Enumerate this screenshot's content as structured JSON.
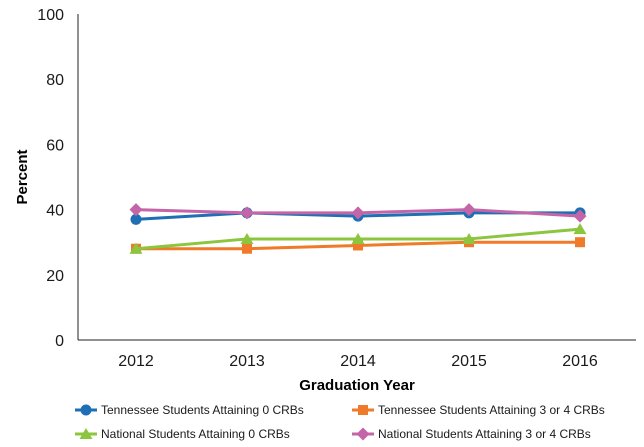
{
  "chart_data": {
    "type": "line",
    "title": "",
    "xlabel": "Graduation Year",
    "ylabel": "Percent",
    "categories": [
      "2012",
      "2013",
      "2014",
      "2015",
      "2016"
    ],
    "ylim": [
      0,
      100
    ],
    "yticks": [
      0,
      20,
      40,
      60,
      80,
      100
    ],
    "grid": false,
    "legend_position": "bottom",
    "series": [
      {
        "name": "Tennessee Students Attaining 0 CRBs",
        "values": [
          37,
          39,
          38,
          39,
          39
        ],
        "color": "#1f6fb4",
        "marker": "circle"
      },
      {
        "name": "Tennessee Students Attaining 3 or 4 CRBs",
        "values": [
          28,
          28,
          29,
          30,
          30
        ],
        "color": "#ef7a29",
        "marker": "square"
      },
      {
        "name": "National Students Attaining 0 CRBs",
        "values": [
          28,
          31,
          31,
          31,
          34
        ],
        "color": "#8cc63f",
        "marker": "triangle"
      },
      {
        "name": "National Students Attaining 3 or 4 CRBs",
        "values": [
          40,
          39,
          39,
          40,
          38
        ],
        "color": "#c465a8",
        "marker": "diamond"
      }
    ]
  }
}
